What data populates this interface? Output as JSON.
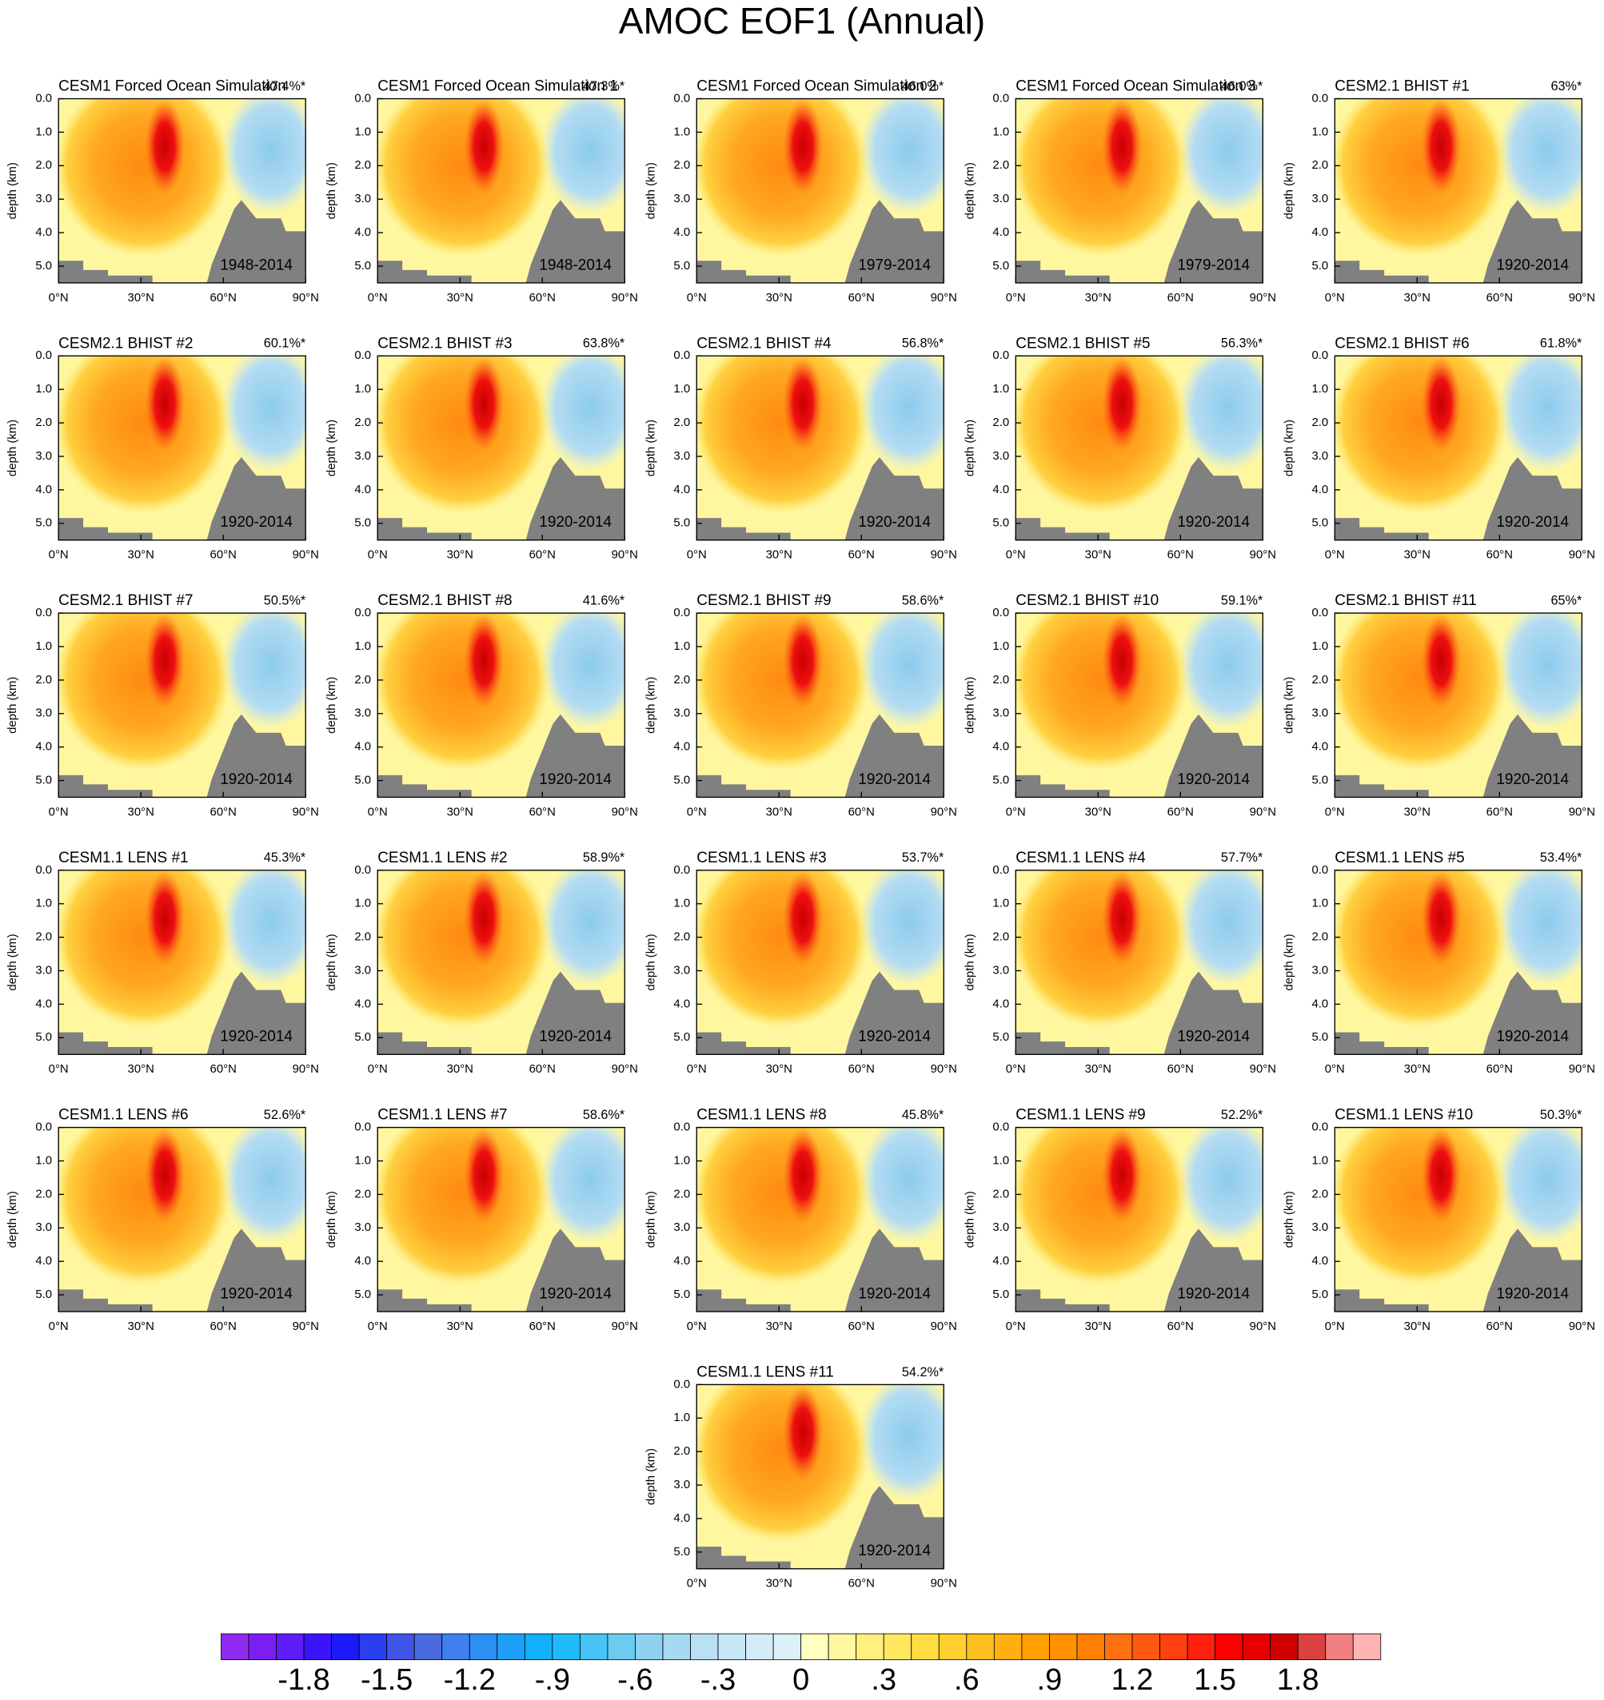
{
  "chart_data": {
    "type": "contour-panels",
    "title": "AMOC EOF1 (Annual)",
    "ylabel": "depth (km)",
    "ylim": [
      0,
      5.5
    ],
    "yticks": [
      {
        "value": 0,
        "label": "0.0"
      },
      {
        "value": 1,
        "label": "1.0"
      },
      {
        "value": 2,
        "label": "2.0"
      },
      {
        "value": 3,
        "label": "3.0"
      },
      {
        "value": 4,
        "label": "4.0"
      },
      {
        "value": 5,
        "label": "5.0"
      }
    ],
    "xlim": [
      0,
      90
    ],
    "xticks": [
      {
        "value": 0,
        "label": "0°N"
      },
      {
        "value": 30,
        "label": "30°N"
      },
      {
        "value": 60,
        "label": "60°N"
      },
      {
        "value": 90,
        "label": "90°N"
      }
    ],
    "panels": [
      {
        "title": "CESM1 Forced Ocean Simulation",
        "pct": "47.4%*",
        "period": "1948-2014"
      },
      {
        "title": "CESM1 Forced Ocean Simulation 1",
        "pct": "47.3%*",
        "period": "1948-2014"
      },
      {
        "title": "CESM1 Forced Ocean Simulation 2",
        "pct": "46.0%*",
        "period": "1979-2014"
      },
      {
        "title": "CESM1 Forced Ocean Simulation 3",
        "pct": "46.0%*",
        "period": "1979-2014"
      },
      {
        "title": "CESM2.1 BHIST #1",
        "pct": "63%*",
        "period": "1920-2014"
      },
      {
        "title": "CESM2.1 BHIST #2",
        "pct": "60.1%*",
        "period": "1920-2014"
      },
      {
        "title": "CESM2.1 BHIST #3",
        "pct": "63.8%*",
        "period": "1920-2014"
      },
      {
        "title": "CESM2.1 BHIST #4",
        "pct": "56.8%*",
        "period": "1920-2014"
      },
      {
        "title": "CESM2.1 BHIST #5",
        "pct": "56.3%*",
        "period": "1920-2014"
      },
      {
        "title": "CESM2.1 BHIST #6",
        "pct": "61.8%*",
        "period": "1920-2014"
      },
      {
        "title": "CESM2.1 BHIST #7",
        "pct": "50.5%*",
        "period": "1920-2014"
      },
      {
        "title": "CESM2.1 BHIST #8",
        "pct": "41.6%*",
        "period": "1920-2014"
      },
      {
        "title": "CESM2.1 BHIST #9",
        "pct": "58.6%*",
        "period": "1920-2014"
      },
      {
        "title": "CESM2.1 BHIST #10",
        "pct": "59.1%*",
        "period": "1920-2014"
      },
      {
        "title": "CESM2.1 BHIST #11",
        "pct": "65%*",
        "period": "1920-2014"
      },
      {
        "title": "CESM1.1 LENS #1",
        "pct": "45.3%*",
        "period": "1920-2014"
      },
      {
        "title": "CESM1.1 LENS #2",
        "pct": "58.9%*",
        "period": "1920-2014"
      },
      {
        "title": "CESM1.1 LENS #3",
        "pct": "53.7%*",
        "period": "1920-2014"
      },
      {
        "title": "CESM1.1 LENS #4",
        "pct": "57.7%*",
        "period": "1920-2014"
      },
      {
        "title": "CESM1.1 LENS #5",
        "pct": "53.4%*",
        "period": "1920-2014"
      },
      {
        "title": "CESM1.1 LENS #6",
        "pct": "52.6%*",
        "period": "1920-2014"
      },
      {
        "title": "CESM1.1 LENS #7",
        "pct": "58.6%*",
        "period": "1920-2014"
      },
      {
        "title": "CESM1.1 LENS #8",
        "pct": "45.8%*",
        "period": "1920-2014"
      },
      {
        "title": "CESM1.1 LENS #9",
        "pct": "52.2%*",
        "period": "1920-2014"
      },
      {
        "title": "CESM1.1 LENS #10",
        "pct": "50.3%*",
        "period": "1920-2014"
      },
      {
        "title": "CESM1.1 LENS #11",
        "pct": "54.2%*",
        "period": "1920-2014"
      }
    ],
    "colorbar": {
      "range": [
        -2.1,
        2.1
      ],
      "ticks": [
        -1.8,
        -1.5,
        -1.2,
        {
          "value": -0.9,
          "label": "-.9"
        },
        {
          "value": -0.6,
          "label": "-.6"
        },
        {
          "value": -0.3,
          "label": "-.3"
        },
        0,
        {
          "value": 0.3,
          "label": ".3"
        },
        {
          "value": 0.6,
          "label": ".6"
        },
        {
          "value": 0.9,
          "label": ".9"
        },
        1.2,
        1.5,
        1.8
      ],
      "colors": [
        "#8f2bf0",
        "#7b1ff4",
        "#5c1df8",
        "#3a14fb",
        "#1a1afa",
        "#2a3ff0",
        "#3f55e8",
        "#4a6ae0",
        "#3f7ff0",
        "#2b8ff5",
        "#1ea0f8",
        "#10b0fc",
        "#20bcfa",
        "#45c4f5",
        "#6dcbf0",
        "#8ed2f0",
        "#a6d9f2",
        "#b9e0f4",
        "#c7e6f6",
        "#d4ecf7",
        "#dcf0f8",
        "#ffffc0",
        "#fff8a0",
        "#fff080",
        "#ffe860",
        "#ffdd40",
        "#ffd030",
        "#ffc020",
        "#ffb010",
        "#ffa000",
        "#ff9000",
        "#ff8000",
        "#ff7010",
        "#ff5810",
        "#ff4010",
        "#ff2010",
        "#ff0000",
        "#e80000",
        "#d00000",
        "#dc4040",
        "#f08080",
        "#ffb4b4"
      ]
    }
  }
}
